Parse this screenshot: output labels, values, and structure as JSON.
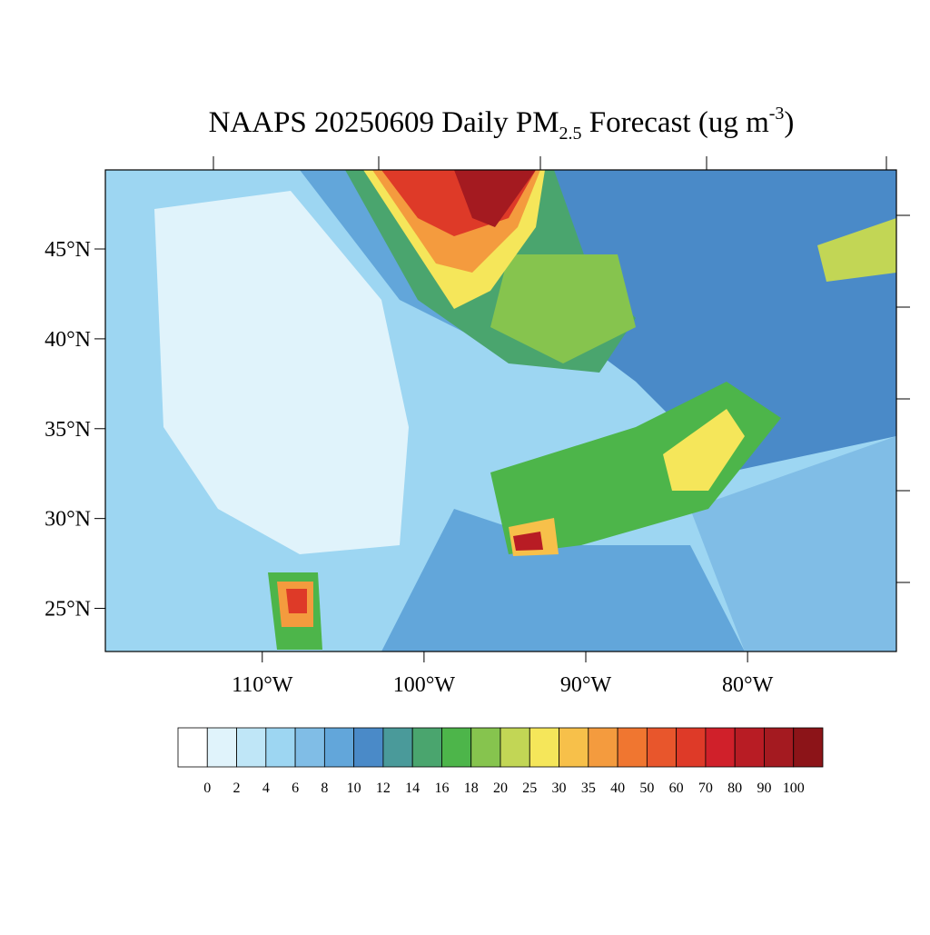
{
  "title": {
    "main": "NAAPS 20250609 Daily PM",
    "sub": "2.5",
    "mid": " Forecast (ug m",
    "sup": "-3",
    "end": ")"
  },
  "map": {
    "lon_range": [
      -119.7,
      -70.8
    ],
    "lat_range": [
      22.6,
      49.4
    ],
    "lat_ticks": [
      {
        "value": 45,
        "label": "45°N"
      },
      {
        "value": 40,
        "label": "40°N"
      },
      {
        "value": 35,
        "label": "35°N"
      },
      {
        "value": 30,
        "label": "30°N"
      },
      {
        "value": 25,
        "label": "25°N"
      }
    ],
    "lon_ticks": [
      {
        "value": -110,
        "label": "110°W"
      },
      {
        "value": -100,
        "label": "100°W"
      },
      {
        "value": -90,
        "label": "90°W"
      },
      {
        "value": -80,
        "label": "80°W"
      }
    ]
  },
  "colorbar": {
    "levels": [
      0,
      2,
      4,
      6,
      8,
      10,
      12,
      14,
      16,
      18,
      20,
      25,
      30,
      35,
      40,
      50,
      60,
      70,
      80,
      90,
      100
    ],
    "colors": [
      "#ffffff",
      "#e0f3fb",
      "#bfe6f7",
      "#9dd6f2",
      "#80bde6",
      "#62a6da",
      "#4a8ac8",
      "#4a9a9a",
      "#4aa56e",
      "#4db54a",
      "#86c44e",
      "#c2d655",
      "#f5e65a",
      "#f7c04a",
      "#f49b3e",
      "#f07630",
      "#e8562c",
      "#de3a28",
      "#d0202a",
      "#b81c24",
      "#a41a20",
      "#8c1418"
    ]
  }
}
